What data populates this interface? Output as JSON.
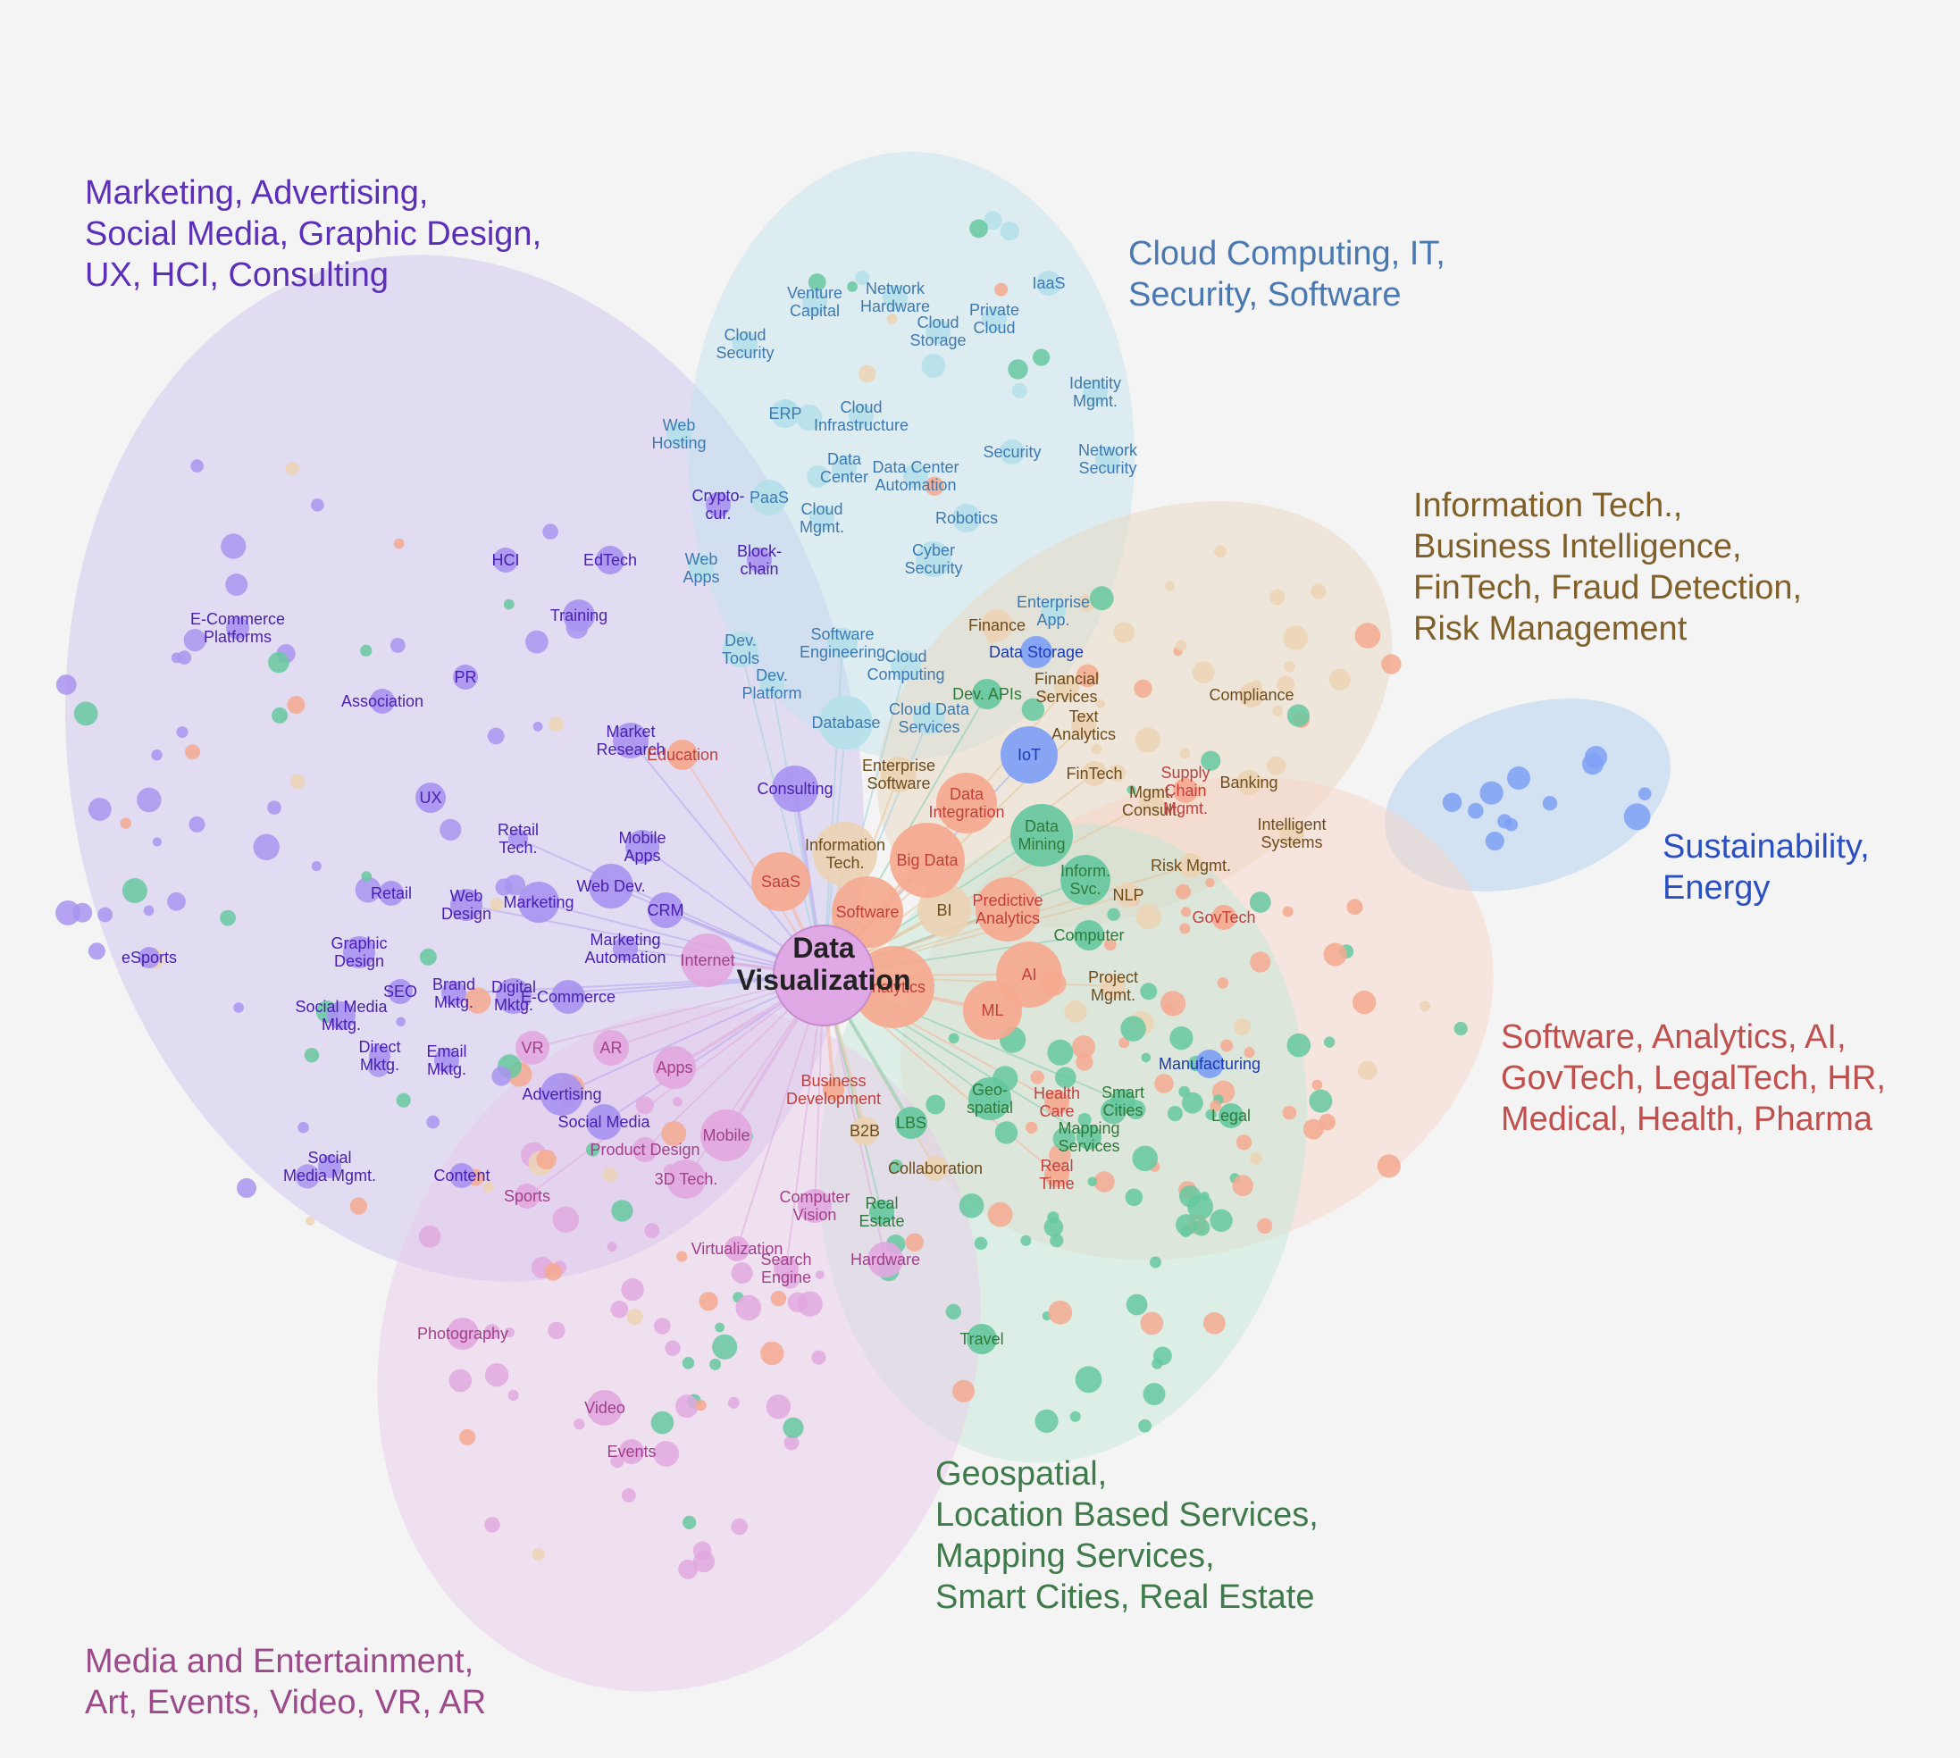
{
  "center": {
    "label_line1": "Data",
    "label_line2": "Visualization"
  },
  "clusters": [
    {
      "id": "marketing",
      "color": "#5b2fb8",
      "fill": "#c9bff0",
      "lines": [
        "Marketing, Advertising,",
        "Social Media, Graphic Design,",
        "UX, HCI, Consulting"
      ]
    },
    {
      "id": "cloud",
      "color": "#4a78b0",
      "fill": "#bfe3ee",
      "lines": [
        "Cloud Computing, IT,",
        "Security, Software"
      ]
    },
    {
      "id": "it",
      "color": "#80602a",
      "fill": "#e8d8c0",
      "lines": [
        "Information Tech.,",
        "Business Intelligence,",
        "FinTech, Fraud Detection,",
        "Risk Management"
      ]
    },
    {
      "id": "sustain",
      "color": "#2a4fc0",
      "fill": "#bcd6f0",
      "lines": [
        "Sustainability,",
        "Energy"
      ]
    },
    {
      "id": "software",
      "color": "#c0504d",
      "fill": "#f8d3c4",
      "lines": [
        "Software, Analytics, AI,",
        "GovTech, LegalTech, HR,",
        "Medical, Health, Pharma"
      ]
    },
    {
      "id": "geo",
      "color": "#3f7a4a",
      "fill": "#bfe6d4",
      "lines": [
        "Geospatial,",
        "Location Based Services,",
        "Mapping Services,",
        "Smart Cities, Real Estate"
      ]
    },
    {
      "id": "media",
      "color": "#9b4a8a",
      "fill": "#e8c8e8",
      "lines": [
        "Media and Entertainment,",
        "Art, Events, Video, VR, AR"
      ]
    }
  ],
  "colors": {
    "marketing_node": "#a994f0",
    "cloud_node": "#b4e0ea",
    "it_node": "#ecd3b4",
    "sustain_node": "#7ea0f5",
    "software_node": "#f5a98f",
    "geo_node": "#66c8a0",
    "media_node": "#e2a8e0",
    "center_node": "#e0a8e4"
  },
  "nodes": [
    {
      "label": "HCI",
      "c": "marketing"
    },
    {
      "label": "EdTech",
      "c": "marketing"
    },
    {
      "label": "E-Commerce\nPlatforms",
      "c": "marketing"
    },
    {
      "label": "Training",
      "c": "marketing"
    },
    {
      "label": "PR",
      "c": "marketing"
    },
    {
      "label": "Association",
      "c": "marketing"
    },
    {
      "label": "Market\nResearch",
      "c": "marketing"
    },
    {
      "label": "UX",
      "c": "marketing"
    },
    {
      "label": "Consulting",
      "c": "marketing"
    },
    {
      "label": "Retail\nTech.",
      "c": "marketing"
    },
    {
      "label": "Mobile\nApps",
      "c": "marketing"
    },
    {
      "label": "Retail",
      "c": "marketing"
    },
    {
      "label": "Web\nDesign",
      "c": "marketing"
    },
    {
      "label": "Marketing",
      "c": "marketing"
    },
    {
      "label": "Web Dev.",
      "c": "marketing"
    },
    {
      "label": "CRM",
      "c": "marketing"
    },
    {
      "label": "Graphic\nDesign",
      "c": "marketing"
    },
    {
      "label": "eSports",
      "c": "marketing"
    },
    {
      "label": "Marketing\nAutomation",
      "c": "marketing"
    },
    {
      "label": "SEO",
      "c": "marketing"
    },
    {
      "label": "Brand\nMktg.",
      "c": "marketing"
    },
    {
      "label": "Digital\nMktg.",
      "c": "marketing"
    },
    {
      "label": "E-Commerce",
      "c": "marketing"
    },
    {
      "label": "Social Media\nMktg.",
      "c": "marketing"
    },
    {
      "label": "Direct\nMktg.",
      "c": "marketing"
    },
    {
      "label": "Email\nMktg.",
      "c": "marketing"
    },
    {
      "label": "Advertising",
      "c": "marketing"
    },
    {
      "label": "Social Media",
      "c": "marketing"
    },
    {
      "label": "Social\nMedia Mgmt.",
      "c": "marketing"
    },
    {
      "label": "Content",
      "c": "marketing"
    },
    {
      "label": "Crypto-\ncur.",
      "c": "marketing"
    },
    {
      "label": "Block-\nchain",
      "c": "marketing"
    },
    {
      "label": "Venture\nCapital",
      "c": "cloud"
    },
    {
      "label": "Network\nHardware",
      "c": "cloud"
    },
    {
      "label": "Private\nCloud",
      "c": "cloud"
    },
    {
      "label": "IaaS",
      "c": "cloud"
    },
    {
      "label": "Cloud\nStorage",
      "c": "cloud"
    },
    {
      "label": "Cloud\nSecurity",
      "c": "cloud"
    },
    {
      "label": "Identity\nMgmt.",
      "c": "cloud"
    },
    {
      "label": "ERP",
      "c": "cloud"
    },
    {
      "label": "Cloud\nInfrastructure",
      "c": "cloud"
    },
    {
      "label": "Web\nHosting",
      "c": "cloud"
    },
    {
      "label": "Security",
      "c": "cloud"
    },
    {
      "label": "Network\nSecurity",
      "c": "cloud"
    },
    {
      "label": "Data\nCenter",
      "c": "cloud"
    },
    {
      "label": "Data Center\nAutomation",
      "c": "cloud"
    },
    {
      "label": "PaaS",
      "c": "cloud"
    },
    {
      "label": "Cloud\nMgmt.",
      "c": "cloud"
    },
    {
      "label": "Robotics",
      "c": "cloud"
    },
    {
      "label": "Web\nApps",
      "c": "cloud"
    },
    {
      "label": "Cyber\nSecurity",
      "c": "cloud"
    },
    {
      "label": "Enterprise\nApp.",
      "c": "cloud"
    },
    {
      "label": "Dev.\nTools",
      "c": "cloud"
    },
    {
      "label": "Software\nEngineering",
      "c": "cloud"
    },
    {
      "label": "Cloud\nComputing",
      "c": "cloud"
    },
    {
      "label": "Dev.\nPlatform",
      "c": "cloud"
    },
    {
      "label": "Database",
      "c": "cloud"
    },
    {
      "label": "Cloud Data\nServices",
      "c": "cloud"
    },
    {
      "label": "Finance",
      "c": "it"
    },
    {
      "label": "Financial\nServices",
      "c": "it"
    },
    {
      "label": "Compliance",
      "c": "it"
    },
    {
      "label": "Text\nAnalytics",
      "c": "it"
    },
    {
      "label": "Enterprise\nSoftware",
      "c": "it"
    },
    {
      "label": "FinTech",
      "c": "it"
    },
    {
      "label": "Banking",
      "c": "it"
    },
    {
      "label": "Mgmt.\nConsult.",
      "c": "it"
    },
    {
      "label": "Intelligent\nSystems",
      "c": "it"
    },
    {
      "label": "Information\nTech.",
      "c": "it"
    },
    {
      "label": "Risk Mgmt.",
      "c": "it"
    },
    {
      "label": "NLP",
      "c": "it"
    },
    {
      "label": "BI",
      "c": "it"
    },
    {
      "label": "Project\nMgmt.",
      "c": "it"
    },
    {
      "label": "B2B",
      "c": "it"
    },
    {
      "label": "Collaboration",
      "c": "it"
    },
    {
      "label": "Data Storage",
      "c": "sustain"
    },
    {
      "label": "IoT",
      "c": "sustain"
    },
    {
      "label": "Manufacturing",
      "c": "sustain"
    },
    {
      "label": "Education",
      "c": "software"
    },
    {
      "label": "Data\nIntegration",
      "c": "software"
    },
    {
      "label": "Supply\nChain\nMgmt.",
      "c": "software"
    },
    {
      "label": "SaaS",
      "c": "software"
    },
    {
      "label": "Big Data",
      "c": "software"
    },
    {
      "label": "Software",
      "c": "software"
    },
    {
      "label": "Predictive\nAnalytics",
      "c": "software"
    },
    {
      "label": "GovTech",
      "c": "software"
    },
    {
      "label": "AI",
      "c": "software"
    },
    {
      "label": "Analytics",
      "c": "software"
    },
    {
      "label": "ML",
      "c": "software"
    },
    {
      "label": "Business\nDevelopment",
      "c": "software"
    },
    {
      "label": "Health\nCare",
      "c": "software"
    },
    {
      "label": "Real\nTime",
      "c": "software"
    },
    {
      "label": "Dev. APIs",
      "c": "geo"
    },
    {
      "label": "Data\nMining",
      "c": "geo"
    },
    {
      "label": "Inform.\nSvc.",
      "c": "geo"
    },
    {
      "label": "Computer",
      "c": "geo"
    },
    {
      "label": "Geo-\nspatial",
      "c": "geo"
    },
    {
      "label": "Smart\nCities",
      "c": "geo"
    },
    {
      "label": "Legal",
      "c": "geo"
    },
    {
      "label": "LBS",
      "c": "geo"
    },
    {
      "label": "Mapping\nServices",
      "c": "geo"
    },
    {
      "label": "Real\nEstate",
      "c": "geo"
    },
    {
      "label": "Travel",
      "c": "geo"
    },
    {
      "label": "Internet",
      "c": "media"
    },
    {
      "label": "VR",
      "c": "media"
    },
    {
      "label": "AR",
      "c": "media"
    },
    {
      "label": "Apps",
      "c": "media"
    },
    {
      "label": "Product Design",
      "c": "media"
    },
    {
      "label": "Mobile",
      "c": "media"
    },
    {
      "label": "3D Tech.",
      "c": "media"
    },
    {
      "label": "Sports",
      "c": "media"
    },
    {
      "label": "Computer\nVision",
      "c": "media"
    },
    {
      "label": "Virtualization",
      "c": "media"
    },
    {
      "label": "Search\nEngine",
      "c": "media"
    },
    {
      "label": "Hardware",
      "c": "media"
    },
    {
      "label": "Photography",
      "c": "media"
    },
    {
      "label": "Video",
      "c": "media"
    },
    {
      "label": "Events",
      "c": "media"
    }
  ]
}
